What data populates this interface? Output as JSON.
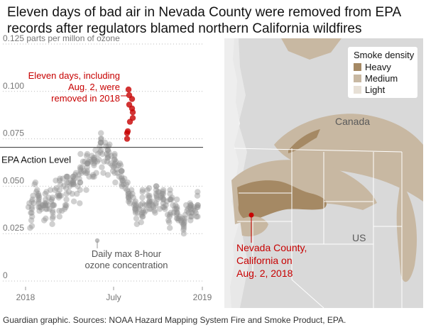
{
  "title": "Eleven days of bad air in Nevada County were removed from EPA records after regulators blamed northern California wildfires",
  "source": "Guardian graphic. Sources: NOAA Hazard Mapping System Fire and Smoke Product, EPA.",
  "chart_data": {
    "type": "scatter",
    "ylabel": "0.125 parts per millon of ozone",
    "ylim": [
      0,
      0.125
    ],
    "y_ticks": [
      {
        "value": 0.1,
        "label": "0.100"
      },
      {
        "value": 0.075,
        "label": "0.075"
      },
      {
        "value": 0.05,
        "label": "0.050"
      },
      {
        "value": 0.025,
        "label": "0.025"
      },
      {
        "value": 0,
        "label": "0"
      }
    ],
    "x_ticks": [
      "2018",
      "July",
      "2019"
    ],
    "epa_action_level": {
      "value": 0.0705,
      "label": "EPA Action Level"
    },
    "annotation_removed": "Eleven days, including Aug. 2, were removed in 2018",
    "annotation_series": "Daily max 8-hour ozone concentration",
    "series": [
      {
        "values": [
          0.039,
          0.041,
          0.028,
          0.036,
          0.032,
          0.036,
          0.042,
          0.038,
          0.039,
          0.029,
          0.034,
          0.043,
          0.045,
          0.041,
          0.051,
          0.052,
          0.047,
          0.048,
          0.045,
          0.046,
          0.039,
          0.043,
          0.041,
          0.042,
          0.045,
          0.044,
          0.037,
          0.039,
          0.039,
          0.038,
          0.04,
          0.04,
          0.032,
          0.041,
          0.046,
          0.04,
          0.043,
          0.04,
          0.033,
          0.038,
          0.041,
          0.047,
          0.038,
          0.04,
          0.044,
          0.038,
          0.048,
          0.042,
          0.043,
          0.03,
          0.033,
          0.044,
          0.04,
          0.037,
          0.036,
          0.034,
          0.04,
          0.04,
          0.048,
          0.053,
          0.049,
          0.045,
          0.046,
          0.044,
          0.037,
          0.045,
          0.045,
          0.034,
          0.048,
          0.053,
          0.054,
          0.051,
          0.045,
          0.037,
          0.054,
          0.05,
          0.038,
          0.04,
          0.039,
          0.049,
          0.04,
          0.043,
          0.046,
          0.055,
          0.052,
          0.055,
          0.055,
          0.052,
          0.047,
          0.05,
          0.053,
          0.051,
          0.046,
          0.052,
          0.055,
          0.051,
          0.053,
          0.055,
          0.052,
          0.051,
          0.042,
          0.054,
          0.056,
          0.057,
          0.046,
          0.05,
          0.056,
          0.054,
          0.041,
          0.048,
          0.052,
          0.052,
          0.06,
          0.059,
          0.067,
          0.058,
          0.057,
          0.06,
          0.063,
          0.058,
          0.063,
          0.057,
          0.048,
          0.066,
          0.062,
          0.06,
          0.058,
          0.057,
          0.067,
          0.062,
          0.062,
          0.063,
          0.055,
          0.064,
          0.063,
          0.066,
          0.055,
          0.056,
          0.065,
          0.064,
          0.062,
          0.061,
          0.064,
          0.055,
          0.065,
          0.063,
          0.069,
          0.057,
          0.063,
          0.067,
          0.064,
          0.071,
          0.068,
          0.073,
          0.073,
          0.075,
          0.069,
          0.078,
          0.073,
          0.075,
          0.06,
          0.067,
          0.057,
          0.063,
          0.073,
          0.071,
          0.067,
          0.063,
          0.065,
          0.069,
          0.065,
          0.069,
          0.056,
          0.066,
          0.071,
          0.068,
          0.072,
          0.062,
          0.066,
          0.061,
          0.058,
          0.06,
          0.064,
          0.066,
          0.067,
          0.061,
          0.064,
          0.057,
          0.062,
          0.052,
          0.063,
          0.059,
          0.057,
          0.061,
          0.055,
          0.062,
          0.061,
          0.058,
          0.055,
          0.054,
          0.058,
          0.058,
          0.051,
          0.05,
          0.053,
          0.053,
          0.051,
          0.054,
          0.049,
          0.051,
          0.048,
          0.052,
          0.046,
          0.044,
          0.045,
          0.047,
          0.042,
          0.044,
          0.046,
          0.043,
          0.041,
          0.045,
          0.048,
          0.046,
          0.044,
          0.04,
          0.041,
          0.038,
          0.038,
          0.037,
          0.042,
          0.039,
          0.036,
          0.04,
          0.033,
          0.03,
          0.036,
          0.039,
          0.038,
          0.04,
          0.031,
          0.035,
          0.036,
          0.034,
          0.044,
          0.041,
          0.047,
          0.048,
          0.034,
          0.037,
          0.036,
          0.04,
          0.037,
          0.04,
          0.048,
          0.045,
          0.041,
          0.049,
          0.042,
          0.044,
          0.04,
          0.038,
          0.045,
          0.042,
          0.041,
          0.038,
          0.042,
          0.04,
          0.039,
          0.037,
          0.036,
          0.04,
          0.041,
          0.046,
          0.05,
          0.048,
          0.05,
          0.045,
          0.044,
          0.043,
          0.047,
          0.047,
          0.038,
          0.044,
          0.045,
          0.046,
          0.044,
          0.047,
          0.043,
          0.039,
          0.041,
          0.046,
          0.048,
          0.043,
          0.039,
          0.038,
          0.04,
          0.042,
          0.035,
          0.032,
          0.031,
          0.034,
          0.028,
          0.035,
          0.043,
          0.046,
          0.048,
          0.043,
          0.036,
          0.043,
          0.044,
          0.04,
          0.036,
          0.038,
          0.04,
          0.038,
          0.035,
          0.033,
          0.036,
          0.039,
          0.043,
          0.038,
          0.036,
          0.033,
          0.032,
          0.033,
          0.034,
          0.032,
          0.031,
          0.033,
          0.03,
          0.027,
          0.029,
          0.028,
          0.025,
          0.03,
          0.032,
          0.031,
          0.033,
          0.035,
          0.04,
          0.037,
          0.038,
          0.036,
          0.039,
          0.041,
          0.032,
          0.034,
          0.039,
          0.04,
          0.04,
          0.038,
          0.036,
          0.034,
          0.036,
          0.038,
          0.039,
          0.037,
          0.036,
          0.034,
          0.039,
          0.045,
          0.047,
          0.04,
          0.034,
          0.039,
          0.04
        ]
      },
      {
        "values": [
          0.075,
          0.078,
          0.079,
          0.086,
          0.084,
          0.089,
          0.091,
          0.093,
          0.096,
          0.098,
          0.101
        ]
      }
    ]
  },
  "map": {
    "legend_title": "Smoke density",
    "legend_items": [
      "Heavy",
      "Medium",
      "Light"
    ],
    "legend_colors": [
      "#a58964",
      "#c8b8a2",
      "#e7e0d6"
    ],
    "label_canada": "Canada",
    "label_us": "US",
    "label_nevada_county": "Nevada County, California on Aug. 2, 2018"
  }
}
